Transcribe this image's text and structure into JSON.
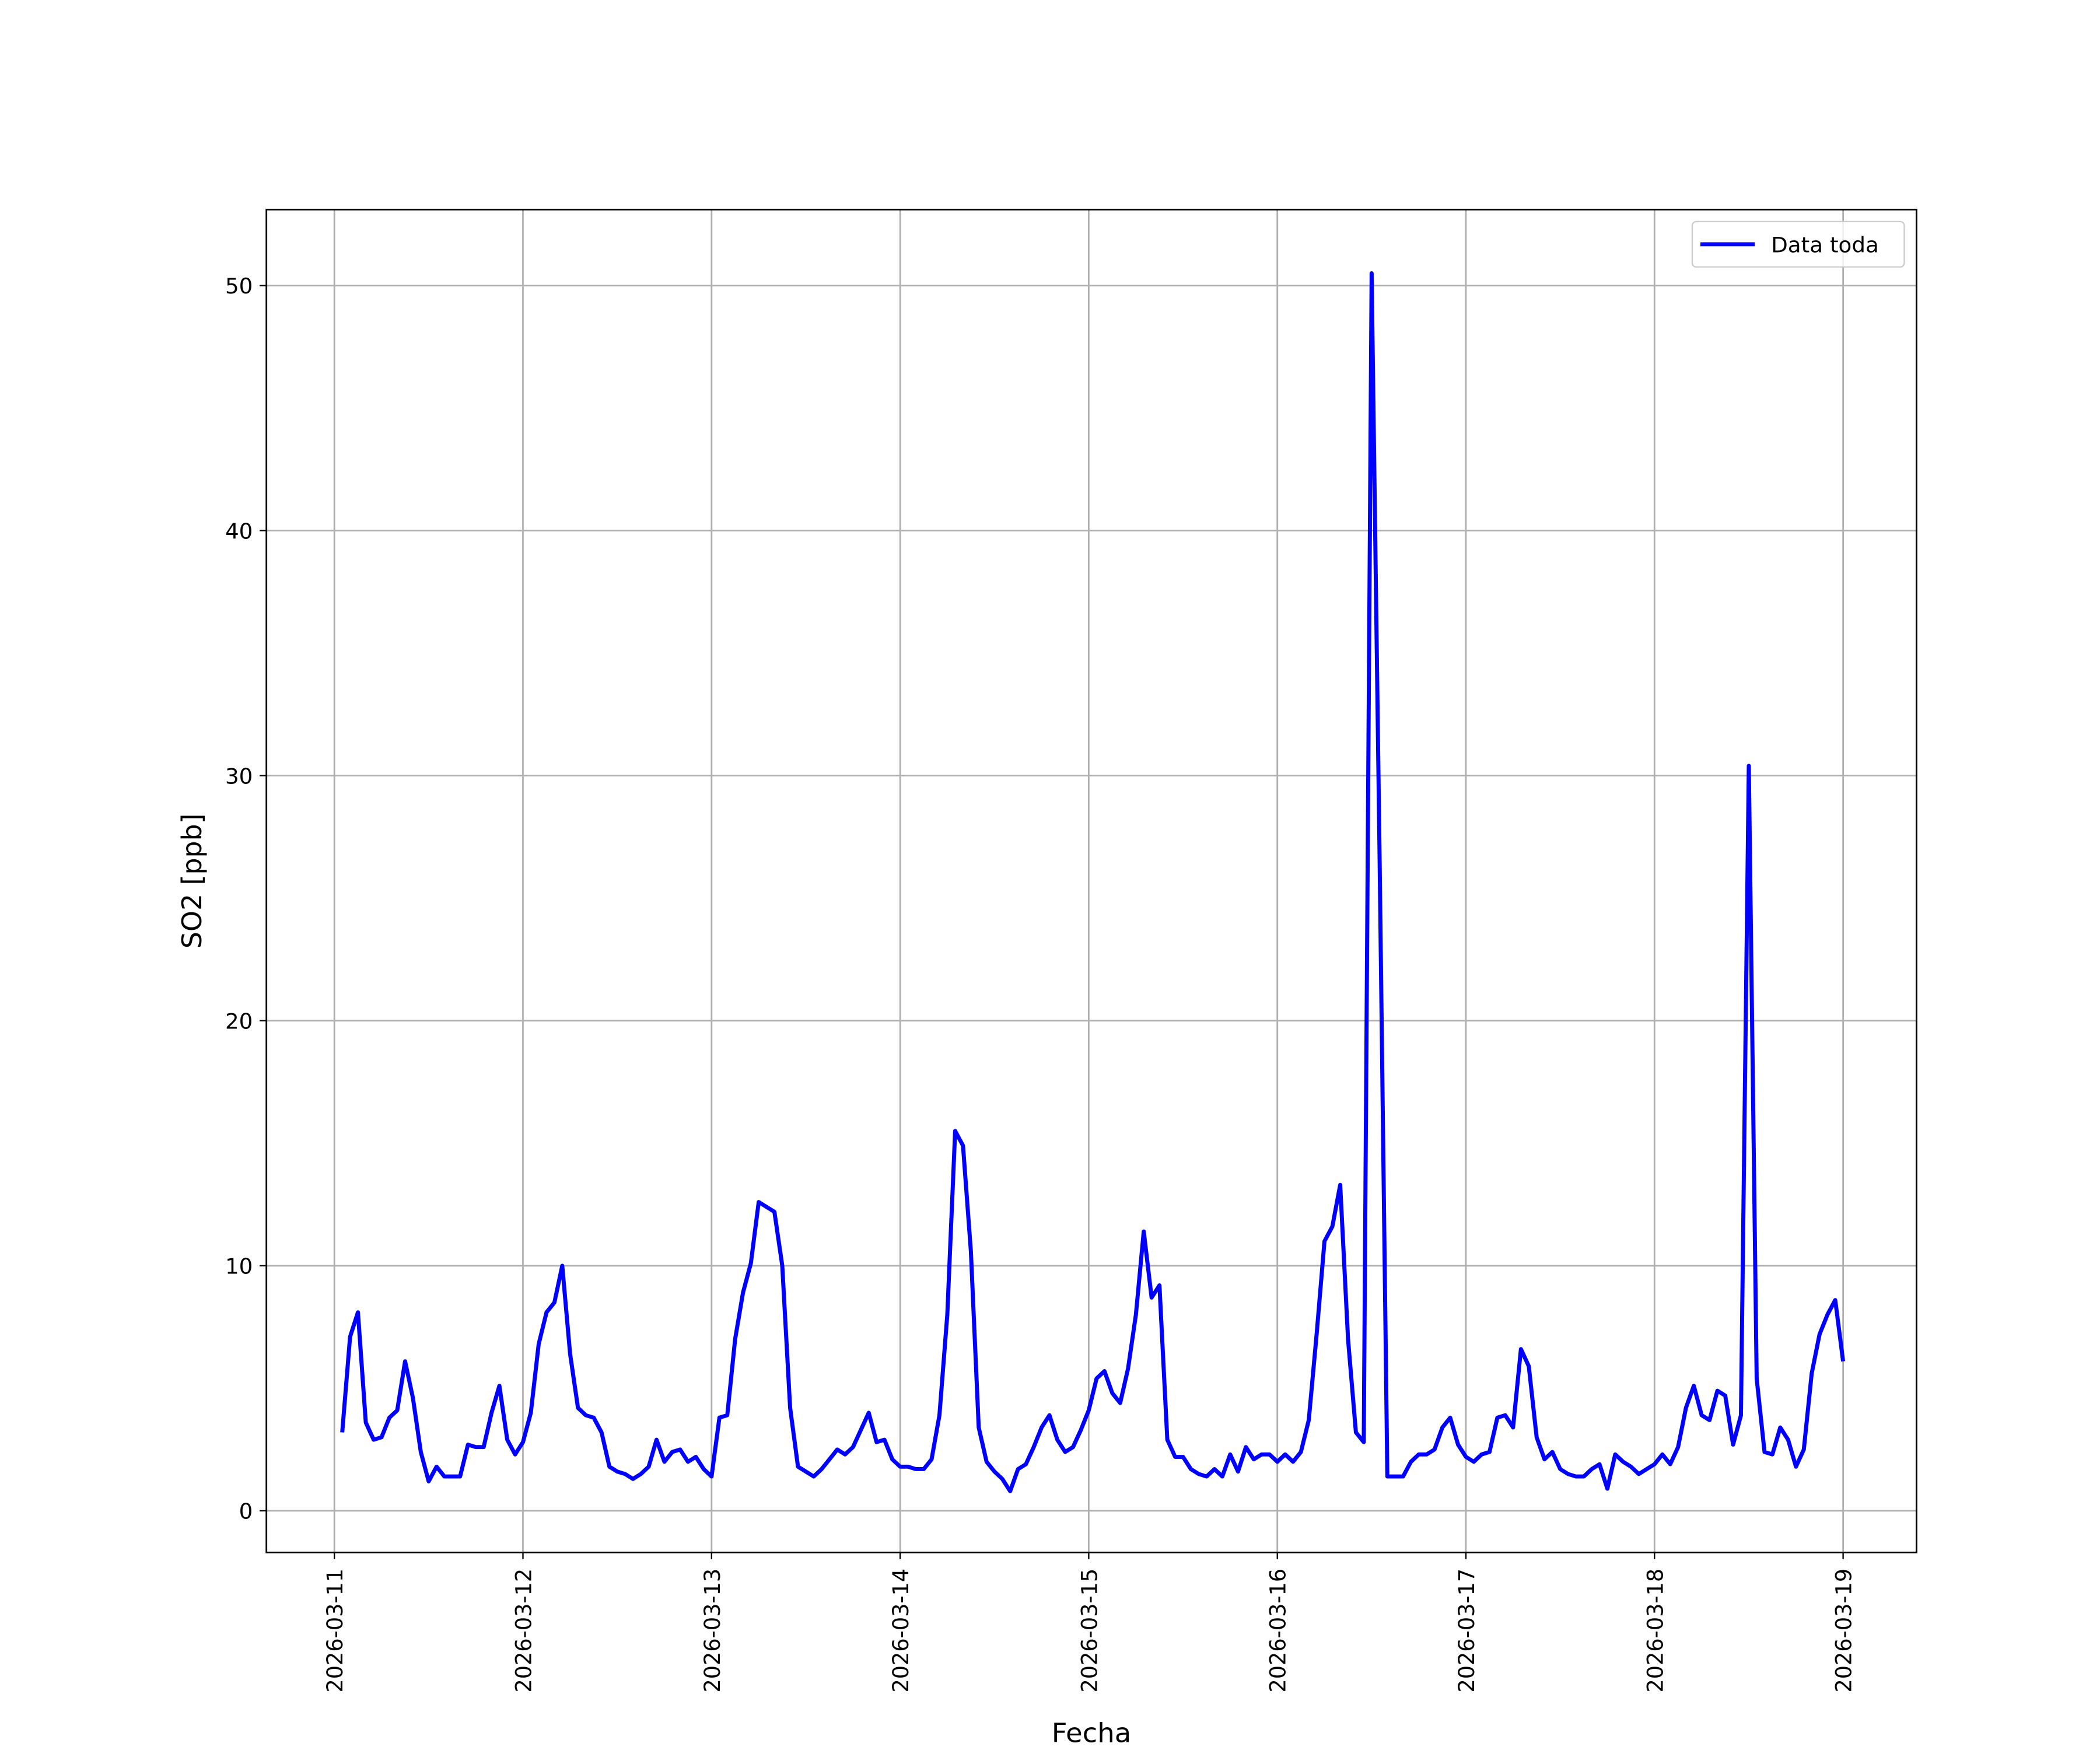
{
  "chart_data": {
    "type": "line",
    "xlabel": "Fecha",
    "ylabel": "SO2 [ppb]",
    "xticks": [
      "2026-03-11",
      "2026-03-12",
      "2026-03-13",
      "2026-03-14",
      "2026-03-15",
      "2026-03-16",
      "2026-03-17",
      "2026-03-18",
      "2026-03-19"
    ],
    "ylim": [
      -1.7,
      53.1
    ],
    "yticks": [
      0,
      10,
      20,
      30,
      40,
      50
    ],
    "grid": true,
    "legend": "upper right",
    "series": [
      {
        "name": "Data toda",
        "color": "#0000ff",
        "values": [
          3.2,
          7.1,
          8.1,
          3.6,
          2.9,
          3.0,
          3.8,
          4.1,
          6.1,
          4.6,
          2.4,
          1.2,
          1.8,
          1.4,
          1.4,
          1.4,
          2.7,
          2.6,
          2.6,
          4.0,
          5.1,
          2.9,
          2.3,
          2.8,
          4.0,
          6.8,
          8.1,
          8.5,
          10.0,
          6.4,
          4.2,
          3.9,
          3.8,
          3.2,
          1.8,
          1.6,
          1.5,
          1.3,
          1.5,
          1.8,
          2.9,
          2.0,
          2.4,
          2.5,
          2.0,
          2.2,
          1.7,
          1.4,
          3.8,
          3.9,
          7.0,
          8.9,
          10.1,
          12.6,
          12.4,
          12.2,
          10.0,
          4.2,
          1.8,
          1.6,
          1.4,
          1.7,
          2.1,
          2.5,
          2.3,
          2.6,
          3.3,
          4.0,
          2.8,
          2.9,
          2.1,
          1.8,
          1.8,
          1.7,
          1.7,
          2.1,
          3.9,
          8.0,
          15.5,
          14.9,
          10.6,
          3.4,
          2.0,
          1.6,
          1.3,
          0.8,
          1.7,
          1.9,
          2.6,
          3.4,
          3.9,
          2.9,
          2.4,
          2.6,
          3.3,
          4.1,
          5.4,
          5.7,
          4.8,
          4.4,
          5.8,
          8.0,
          11.4,
          8.7,
          9.2,
          2.9,
          2.2,
          2.2,
          1.7,
          1.5,
          1.4,
          1.7,
          1.4,
          2.3,
          1.6,
          2.6,
          2.1,
          2.3,
          2.3,
          2.0,
          2.3,
          2.0,
          2.4,
          3.7,
          7.2,
          11.0,
          11.6,
          13.3,
          7.0,
          3.2,
          2.8,
          50.5,
          27,
          1.4,
          1.4,
          1.4,
          2.0,
          2.3,
          2.3,
          2.5,
          3.4,
          3.8,
          2.7,
          2.2,
          2.0,
          2.3,
          2.4,
          3.8,
          3.9,
          3.4,
          6.6,
          5.9,
          3.0,
          2.1,
          2.4,
          1.7,
          1.5,
          1.4,
          1.4,
          1.7,
          1.9,
          0.9,
          2.3,
          2.0,
          1.8,
          1.5,
          1.7,
          1.9,
          2.3,
          1.9,
          2.6,
          4.2,
          5.1,
          3.9,
          3.7,
          4.9,
          4.7,
          2.7,
          3.9,
          30.4,
          5.4,
          2.4,
          2.3,
          3.4,
          2.9,
          1.8,
          2.5,
          5.6,
          7.2,
          8.0,
          8.6,
          6.1
        ]
      }
    ]
  }
}
